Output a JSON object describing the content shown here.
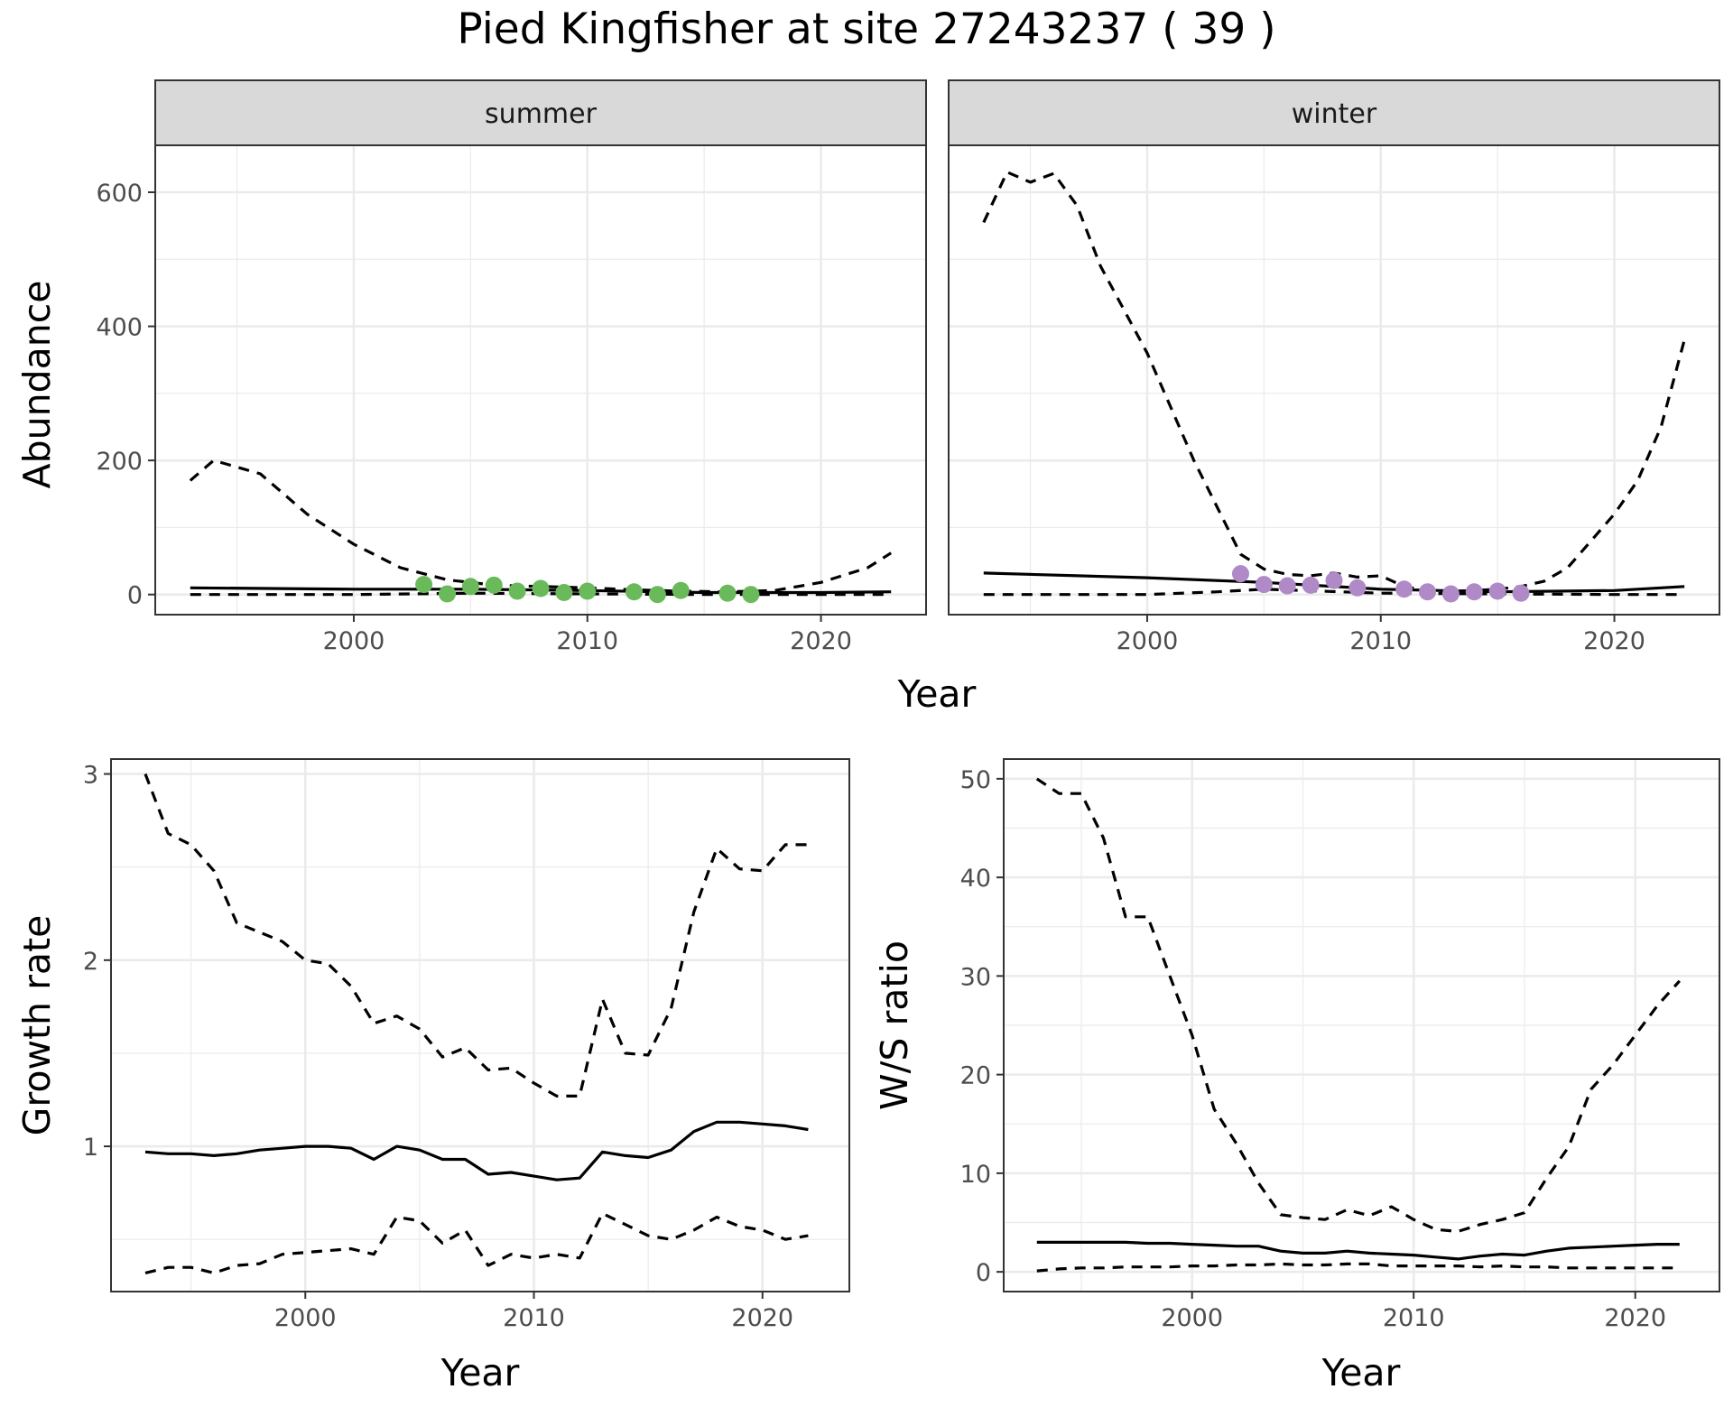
{
  "title": "Pied Kingfisher at site 27243237 ( 39 )",
  "colors": {
    "summer_points": "#6aba5b",
    "winter_points": "#b08ac6",
    "lines": "#000000",
    "strip_bg": "#d9d9d9",
    "grid": "#ebebeb"
  },
  "chart_data": [
    {
      "type": "line",
      "panel": "abundance",
      "facets": [
        "summer",
        "winter"
      ],
      "xlabel": "Year",
      "ylabel": "Abundance",
      "xlim": [
        1991.5,
        2024.5
      ],
      "ylim": [
        -30,
        670
      ],
      "xticks": [
        2000,
        2010,
        2020
      ],
      "yticks": [
        0,
        200,
        400,
        600
      ],
      "grid": true,
      "summer": {
        "estimate": {
          "x": [
            1993,
            2000,
            2005,
            2010,
            2015,
            2020,
            2023
          ],
          "y": [
            10,
            8,
            8,
            6,
            3,
            3,
            4
          ]
        },
        "upper": {
          "x": [
            1993,
            1994,
            1996,
            1998,
            2000,
            2002,
            2004,
            2006,
            2008,
            2010,
            2012,
            2014,
            2016,
            2018,
            2020,
            2022,
            2023
          ],
          "y": [
            170,
            200,
            180,
            120,
            75,
            40,
            22,
            14,
            12,
            10,
            7,
            5,
            4,
            6,
            18,
            40,
            62
          ]
        },
        "lower": {
          "x": [
            1993,
            2000,
            2005,
            2010,
            2015,
            2020,
            2023
          ],
          "y": [
            0,
            0,
            2,
            1,
            0,
            0,
            0
          ]
        },
        "observed": {
          "x": [
            2003,
            2004,
            2005,
            2006,
            2007,
            2008,
            2009,
            2010,
            2012,
            2013,
            2014,
            2016,
            2017
          ],
          "y": [
            15,
            1,
            12,
            14,
            5,
            9,
            3,
            5,
            4,
            0,
            6,
            2,
            0
          ]
        }
      },
      "winter": {
        "estimate": {
          "x": [
            1993,
            2000,
            2005,
            2010,
            2015,
            2020,
            2023
          ],
          "y": [
            32,
            25,
            18,
            8,
            4,
            6,
            12
          ]
        },
        "upper": {
          "x": [
            1993,
            1994,
            1995,
            1996,
            1997,
            1998,
            2000,
            2002,
            2004,
            2005,
            2006,
            2007,
            2008,
            2009,
            2010,
            2011,
            2012,
            2013,
            2014,
            2015,
            2016,
            2017,
            2018,
            2019,
            2020,
            2021,
            2022,
            2023
          ],
          "y": [
            555,
            630,
            615,
            628,
            580,
            490,
            360,
            200,
            60,
            38,
            30,
            28,
            32,
            26,
            28,
            12,
            6,
            5,
            6,
            8,
            12,
            20,
            40,
            80,
            120,
            170,
            250,
            380
          ]
        },
        "lower": {
          "x": [
            1993,
            2000,
            2003,
            2005,
            2010,
            2015,
            2020,
            2023
          ],
          "y": [
            0,
            0,
            4,
            8,
            2,
            1,
            0,
            0
          ]
        },
        "observed": {
          "x": [
            2004,
            2005,
            2006,
            2007,
            2008,
            2009,
            2011,
            2012,
            2013,
            2014,
            2015,
            2016
          ],
          "y": [
            31,
            15,
            13,
            14,
            21,
            10,
            8,
            4,
            1,
            4,
            5,
            2
          ]
        }
      }
    },
    {
      "type": "line",
      "panel": "growth_rate",
      "xlabel": "Year",
      "ylabel": "Growth rate",
      "xlim": [
        1991.5,
        2023.8
      ],
      "ylim": [
        0.22,
        3.08
      ],
      "xticks": [
        2000,
        2010,
        2020
      ],
      "yticks": [
        1,
        2,
        3
      ],
      "grid": true,
      "x": [
        1993,
        1994,
        1995,
        1996,
        1997,
        1998,
        1999,
        2000,
        2001,
        2002,
        2003,
        2004,
        2005,
        2006,
        2007,
        2008,
        2009,
        2010,
        2011,
        2012,
        2013,
        2014,
        2015,
        2016,
        2017,
        2018,
        2019,
        2020,
        2021,
        2022
      ],
      "series": [
        {
          "role": "estimate",
          "values": [
            0.97,
            0.96,
            0.96,
            0.95,
            0.96,
            0.98,
            0.99,
            1.0,
            1.0,
            0.99,
            0.93,
            1.0,
            0.98,
            0.93,
            0.93,
            0.85,
            0.86,
            0.84,
            0.82,
            0.83,
            0.97,
            0.95,
            0.94,
            0.98,
            1.08,
            1.13,
            1.13,
            1.12,
            1.11,
            1.09
          ]
        },
        {
          "role": "upper",
          "values": [
            3.0,
            2.68,
            2.62,
            2.48,
            2.2,
            2.15,
            2.1,
            2.0,
            1.98,
            1.86,
            1.66,
            1.7,
            1.63,
            1.48,
            1.53,
            1.41,
            1.42,
            1.34,
            1.27,
            1.27,
            1.79,
            1.5,
            1.49,
            1.74,
            2.26,
            2.6,
            2.49,
            2.48,
            2.62,
            2.62
          ]
        },
        {
          "role": "lower",
          "values": [
            0.32,
            0.35,
            0.35,
            0.32,
            0.36,
            0.37,
            0.42,
            0.43,
            0.44,
            0.45,
            0.42,
            0.62,
            0.6,
            0.48,
            0.55,
            0.36,
            0.42,
            0.4,
            0.42,
            0.4,
            0.64,
            0.58,
            0.52,
            0.5,
            0.55,
            0.62,
            0.57,
            0.55,
            0.5,
            0.52
          ]
        }
      ]
    },
    {
      "type": "line",
      "panel": "ws_ratio",
      "xlabel": "Year",
      "ylabel": "W/S ratio",
      "xlim": [
        1991.5,
        2023.8
      ],
      "ylim": [
        -2,
        52
      ],
      "xticks": [
        2000,
        2010,
        2020
      ],
      "yticks": [
        0,
        10,
        20,
        30,
        40,
        50
      ],
      "grid": true,
      "x": [
        1993,
        1994,
        1995,
        1996,
        1997,
        1998,
        1999,
        2000,
        2001,
        2002,
        2003,
        2004,
        2005,
        2006,
        2007,
        2008,
        2009,
        2010,
        2011,
        2012,
        2013,
        2014,
        2015,
        2016,
        2017,
        2018,
        2019,
        2020,
        2021,
        2022
      ],
      "series": [
        {
          "role": "estimate",
          "values": [
            3.0,
            3.0,
            3.0,
            3.0,
            3.0,
            2.9,
            2.9,
            2.8,
            2.7,
            2.6,
            2.6,
            2.1,
            1.9,
            1.9,
            2.1,
            1.9,
            1.8,
            1.7,
            1.5,
            1.3,
            1.6,
            1.8,
            1.7,
            2.1,
            2.4,
            2.5,
            2.6,
            2.7,
            2.8,
            2.8
          ]
        },
        {
          "role": "upper",
          "values": [
            50,
            48.5,
            48.5,
            44,
            36,
            36,
            30,
            24,
            16.5,
            13,
            9,
            5.8,
            5.5,
            5.3,
            6.3,
            5.7,
            6.6,
            5.3,
            4.3,
            4.1,
            4.8,
            5.3,
            6.0,
            9.5,
            12.7,
            18.5,
            21,
            24,
            27,
            29.5
          ]
        },
        {
          "role": "lower",
          "values": [
            0.1,
            0.3,
            0.4,
            0.4,
            0.5,
            0.5,
            0.5,
            0.6,
            0.6,
            0.7,
            0.7,
            0.8,
            0.7,
            0.7,
            0.8,
            0.8,
            0.6,
            0.6,
            0.6,
            0.6,
            0.5,
            0.6,
            0.5,
            0.5,
            0.4,
            0.4,
            0.4,
            0.4,
            0.4,
            0.4
          ]
        }
      ]
    }
  ]
}
